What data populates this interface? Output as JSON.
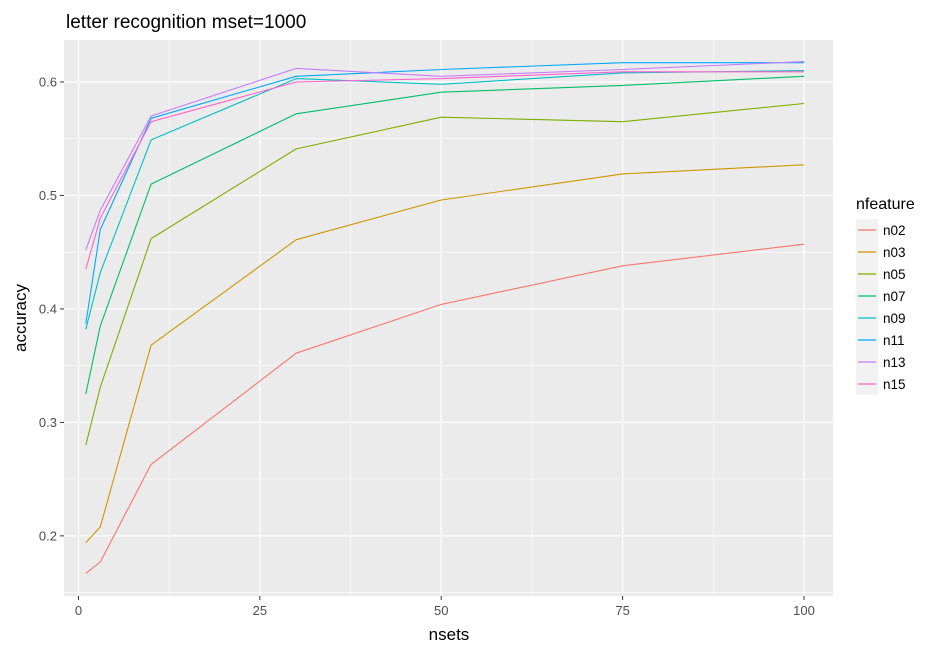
{
  "chart_data": {
    "type": "line",
    "title": "letter recognition mset=1000",
    "xlabel": "nsets",
    "ylabel": "accuracy",
    "xlim": [
      -2,
      104
    ],
    "ylim": [
      0.147,
      0.637
    ],
    "xticks": [
      0,
      25,
      50,
      75,
      100
    ],
    "yticks": [
      0.2,
      0.3,
      0.4,
      0.5,
      0.6
    ],
    "xtick_labels": [
      "0",
      "25",
      "50",
      "75",
      "100"
    ],
    "ytick_labels": [
      "0.2",
      "0.3",
      "0.4",
      "0.5",
      "0.6"
    ],
    "grid": true,
    "legend": {
      "title": "nfeature",
      "position": "right"
    },
    "x": [
      1,
      3,
      10,
      30,
      50,
      75,
      100
    ],
    "series": [
      {
        "name": "n02",
        "color": "#F8766D",
        "values": [
          0.167,
          0.177,
          0.263,
          0.361,
          0.404,
          0.438,
          0.457
        ]
      },
      {
        "name": "n03",
        "color": "#CD9600",
        "values": [
          0.194,
          0.208,
          0.368,
          0.461,
          0.496,
          0.519,
          0.527
        ]
      },
      {
        "name": "n05",
        "color": "#7CAE00",
        "values": [
          0.28,
          0.331,
          0.462,
          0.541,
          0.569,
          0.565,
          0.581
        ]
      },
      {
        "name": "n07",
        "color": "#00BE67",
        "values": [
          0.325,
          0.385,
          0.51,
          0.572,
          0.591,
          0.597,
          0.605
        ]
      },
      {
        "name": "n09",
        "color": "#00BFC4",
        "values": [
          0.382,
          0.432,
          0.549,
          0.603,
          0.598,
          0.608,
          0.61
        ]
      },
      {
        "name": "n11",
        "color": "#00A9FF",
        "values": [
          0.387,
          0.47,
          0.568,
          0.605,
          0.611,
          0.617,
          0.617
        ]
      },
      {
        "name": "n13",
        "color": "#C77CFF",
        "values": [
          0.452,
          0.487,
          0.57,
          0.612,
          0.605,
          0.611,
          0.618
        ]
      },
      {
        "name": "n15",
        "color": "#FF61CC",
        "values": [
          0.435,
          0.48,
          0.565,
          0.6,
          0.603,
          0.609,
          0.609
        ]
      }
    ]
  }
}
